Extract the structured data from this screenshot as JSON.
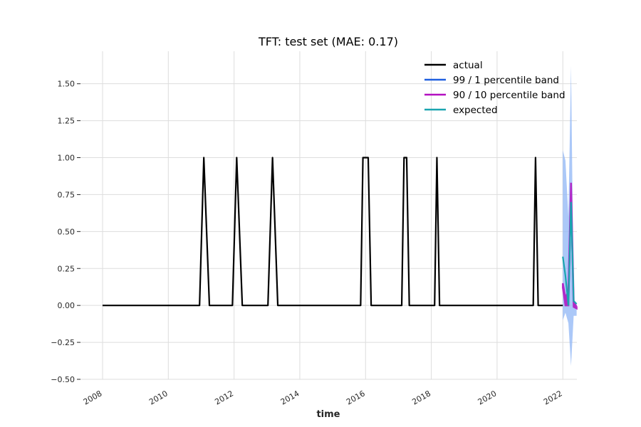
{
  "chart_data": {
    "type": "line",
    "title": "TFT: test set (MAE: 0.17)",
    "xlabel": "time",
    "ylabel": "",
    "xlim": [
      2008.0,
      2023.1
    ],
    "ylim": [
      -0.5,
      1.72
    ],
    "grid": true,
    "legend_position": "top-right",
    "x_ticks": [
      2008,
      2010,
      2012,
      2014,
      2016,
      2018,
      2020,
      2022
    ],
    "x_tick_labels": [
      "2008",
      "2010",
      "2012",
      "2014",
      "2016",
      "2018",
      "2020",
      "2022"
    ],
    "y_ticks": [
      -0.5,
      -0.25,
      0.0,
      0.25,
      0.5,
      0.75,
      1.0,
      1.25,
      1.5
    ],
    "y_tick_labels": [
      "−0.50",
      "−0.25",
      "0.00",
      "0.25",
      "0.50",
      "0.75",
      "1.00",
      "1.25",
      "1.50"
    ],
    "colors": {
      "actual": "#000000",
      "band_99_1": "#1f5fe0",
      "band_90_10": "#b30fc0",
      "expected": "#1aa5b0",
      "band_fill": "#8fb6f5",
      "grid": "#dddddd"
    },
    "series": [
      {
        "name": "actual",
        "x": [
          2008.0,
          2010.95,
          2011.08,
          2011.25,
          2011.95,
          2012.08,
          2012.25,
          2013.03,
          2013.17,
          2013.33,
          2015.85,
          2015.92,
          2016.08,
          2016.17,
          2017.1,
          2017.17,
          2017.25,
          2017.33,
          2018.1,
          2018.17,
          2018.25,
          2021.1,
          2021.17,
          2021.25,
          2022.0
        ],
        "y": [
          0,
          0,
          1,
          0,
          0,
          1,
          0,
          0,
          1,
          0,
          0,
          1,
          1,
          0,
          0,
          1,
          1,
          0,
          0,
          1,
          0,
          0,
          1,
          0,
          0
        ]
      },
      {
        "name": "99 / 1 percentile band",
        "x": [
          2022.0,
          2022.08,
          2022.17,
          2022.25,
          2022.33,
          2022.42
        ],
        "upper": [
          1.05,
          0.98,
          0.6,
          1.62,
          0.05,
          -0.02
        ],
        "lower": [
          -0.1,
          -0.05,
          -0.12,
          -0.41,
          -0.07,
          -0.07
        ]
      },
      {
        "name": "90 / 10 percentile band",
        "x": [
          2022.0,
          2022.08,
          2022.17,
          2022.25,
          2022.33,
          2022.42
        ],
        "upper": [
          0.15,
          0.05,
          0.1,
          0.83,
          0.03,
          -0.01
        ],
        "lower": [
          0.12,
          0.0,
          0.0,
          0.78,
          -0.01,
          -0.02
        ]
      },
      {
        "name": "expected",
        "x": [
          2022.0,
          2022.08,
          2022.17,
          2022.25,
          2022.33,
          2022.42
        ],
        "y": [
          0.33,
          0.2,
          0.0,
          0.7,
          0.03,
          0.01
        ]
      }
    ]
  }
}
